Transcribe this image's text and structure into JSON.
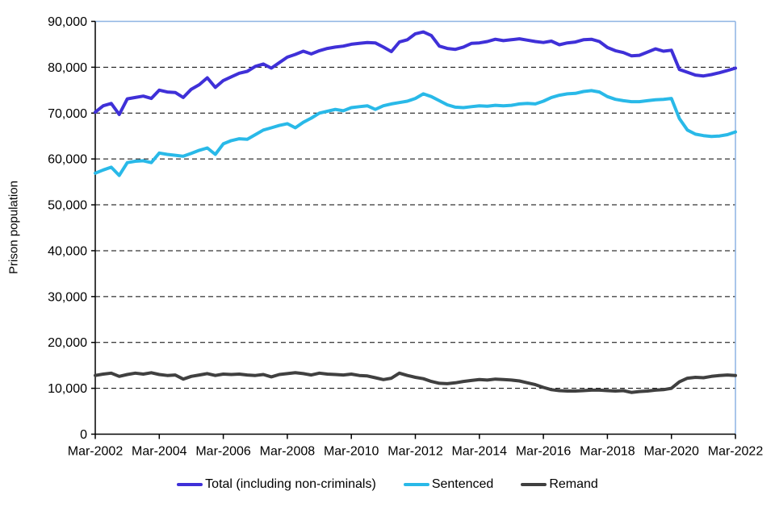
{
  "chart_data": {
    "type": "line",
    "title": "",
    "xlabel": "",
    "ylabel": "Prison population",
    "ylim": [
      0,
      90000
    ],
    "ytick_step": 10000,
    "ytick_labels": [
      "0",
      "10,000",
      "20,000",
      "30,000",
      "40,000",
      "50,000",
      "60,000",
      "70,000",
      "80,000",
      "90,000"
    ],
    "xtick_labels": [
      "Mar-2002",
      "Mar-2004",
      "Mar-2006",
      "Mar-2008",
      "Mar-2010",
      "Mar-2012",
      "Mar-2014",
      "Mar-2016",
      "Mar-2018",
      "Mar-2020",
      "Mar-2022"
    ],
    "x_frequency": "quarterly",
    "grid": "horizontal-dashed",
    "legend_position": "bottom-center",
    "axis_color": "#000000",
    "plot_border_color": "#8EB4E3",
    "gridline_color": "#000000",
    "series": [
      {
        "name": "Total (including non-criminals)",
        "color": "#3F30D8",
        "values": [
          70200,
          71600,
          72100,
          69700,
          73100,
          73400,
          73700,
          73200,
          75000,
          74600,
          74500,
          73400,
          75200,
          76200,
          77700,
          75600,
          77100,
          77900,
          78700,
          79100,
          80200,
          80700,
          79800,
          81000,
          82200,
          82800,
          83500,
          82900,
          83600,
          84100,
          84400,
          84600,
          85000,
          85200,
          85400,
          85300,
          84400,
          83400,
          85500,
          86000,
          87300,
          87700,
          86900,
          84600,
          84100,
          83900,
          84400,
          85200,
          85300,
          85600,
          86100,
          85800,
          86000,
          86200,
          85900,
          85600,
          85400,
          85700,
          84900,
          85300,
          85500,
          86000,
          86100,
          85600,
          84300,
          83600,
          83200,
          82500,
          82600,
          83300,
          84000,
          83500,
          83700,
          79500,
          78900,
          78300,
          78100,
          78400,
          78800,
          79300,
          79800
        ]
      },
      {
        "name": "Sentenced",
        "color": "#29B9E8",
        "values": [
          56900,
          57600,
          58200,
          56400,
          59200,
          59500,
          59600,
          59200,
          61300,
          61000,
          60800,
          60600,
          61200,
          61900,
          62400,
          61000,
          63300,
          64000,
          64400,
          64300,
          65300,
          66300,
          66800,
          67300,
          67700,
          66800,
          68000,
          68900,
          70000,
          70400,
          70800,
          70500,
          71200,
          71400,
          71600,
          70800,
          71600,
          72000,
          72300,
          72600,
          73200,
          74200,
          73600,
          72700,
          71800,
          71300,
          71200,
          71400,
          71600,
          71500,
          71700,
          71600,
          71700,
          72000,
          72100,
          72000,
          72600,
          73400,
          73900,
          74200,
          74300,
          74700,
          74900,
          74600,
          73600,
          73000,
          72700,
          72500,
          72500,
          72700,
          72900,
          73000,
          73200,
          68800,
          66300,
          65400,
          65100,
          64900,
          65000,
          65300,
          65900
        ]
      },
      {
        "name": "Remand",
        "color": "#404040",
        "values": [
          12800,
          13100,
          13300,
          12600,
          13000,
          13300,
          13100,
          13400,
          13000,
          12800,
          12900,
          12000,
          12600,
          12900,
          13200,
          12800,
          13100,
          13000,
          13100,
          12900,
          12800,
          13000,
          12500,
          13000,
          13200,
          13400,
          13200,
          12900,
          13300,
          13100,
          13000,
          12900,
          13100,
          12800,
          12700,
          12300,
          11900,
          12200,
          13300,
          12800,
          12400,
          12100,
          11500,
          11100,
          11000,
          11200,
          11500,
          11700,
          11900,
          11800,
          12000,
          11900,
          11800,
          11600,
          11200,
          10800,
          10200,
          9700,
          9500,
          9400,
          9400,
          9500,
          9600,
          9600,
          9500,
          9400,
          9500,
          9100,
          9300,
          9400,
          9600,
          9700,
          10000,
          11400,
          12200,
          12400,
          12300,
          12600,
          12800,
          12900,
          12800
        ]
      }
    ]
  }
}
